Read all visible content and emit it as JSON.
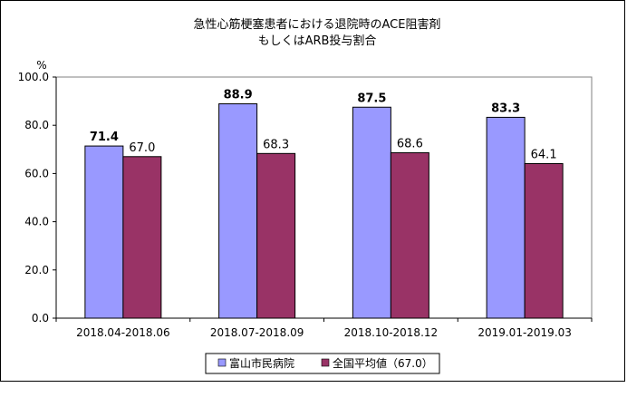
{
  "chart_data": {
    "type": "bar",
    "title_line1": "急性心筋梗塞患者における退院時のACE阻害剤",
    "title_line2": "もしくはARB投与割合",
    "ylabel": "%",
    "ylim": [
      0,
      100
    ],
    "y_ticks": [
      "0.0",
      "20.0",
      "40.0",
      "60.0",
      "80.0",
      "100.0"
    ],
    "categories": [
      "2018.04-2018.06",
      "2018.07-2018.09",
      "2018.10-2018.12",
      "2019.01-2019.03"
    ],
    "series": [
      {
        "name": "富山市民病院",
        "values": [
          71.4,
          88.9,
          87.5,
          83.3
        ],
        "labels": [
          "71.4",
          "88.9",
          "87.5",
          "83.3"
        ],
        "color": "#9999ff"
      },
      {
        "name": "全国平均値（67.0）",
        "values": [
          67.0,
          68.3,
          68.6,
          64.1
        ],
        "labels": [
          "67.0",
          "68.3",
          "68.6",
          "64.1"
        ],
        "color": "#993366"
      }
    ],
    "grid": false,
    "legend_position": "bottom"
  }
}
